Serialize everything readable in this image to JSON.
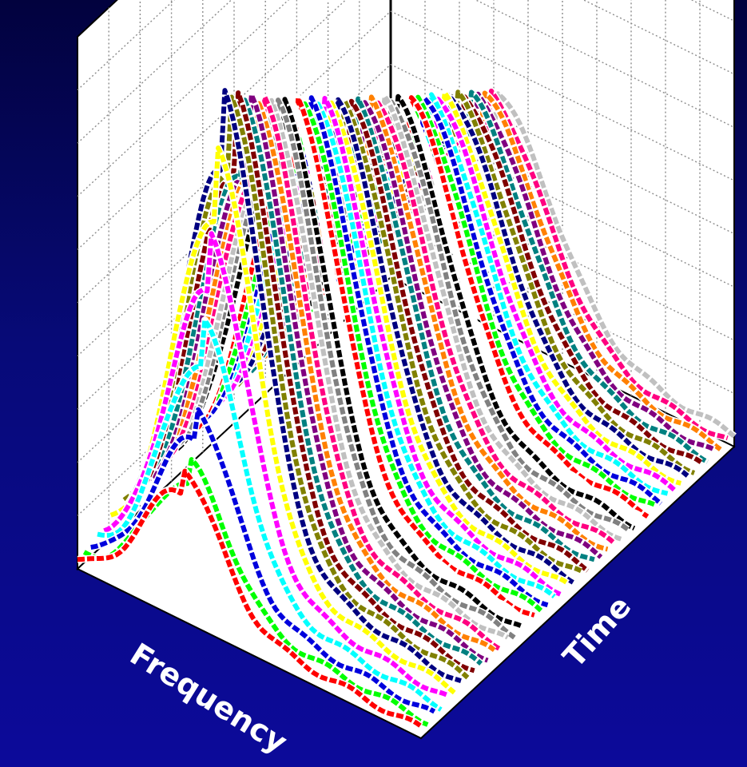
{
  "chart_data": {
    "type": "surface-waterfall",
    "title": "",
    "xlabel": "Frequency",
    "ylabel": "Time",
    "zlabel": "",
    "grid": true,
    "frequency_range": [
      0,
      1
    ],
    "time_range": [
      0,
      1
    ],
    "amplitude_range": [
      0,
      1
    ],
    "series_count": 48,
    "peak_frequency": 0.3,
    "series_peak_amplitude_first": 0.28,
    "series_peak_amplitude_max": 0.93,
    "series_peak_amplitude_last": 0.44,
    "palette": [
      "#ff0000",
      "#00ff00",
      "#0000dd",
      "#00ffff",
      "#ff00ff",
      "#ffff00",
      "#000080",
      "#808000",
      "#800000",
      "#008080",
      "#800080",
      "#ff8000",
      "#ff0080",
      "#c0c0c0",
      "#808080",
      "#000000",
      "#ffffff"
    ],
    "colors": {
      "background_top": "#02023e",
      "background_bottom": "#0c0a9a",
      "panel": "#ffffff",
      "grid": "#8c8c8c",
      "edge": "#000000"
    }
  }
}
